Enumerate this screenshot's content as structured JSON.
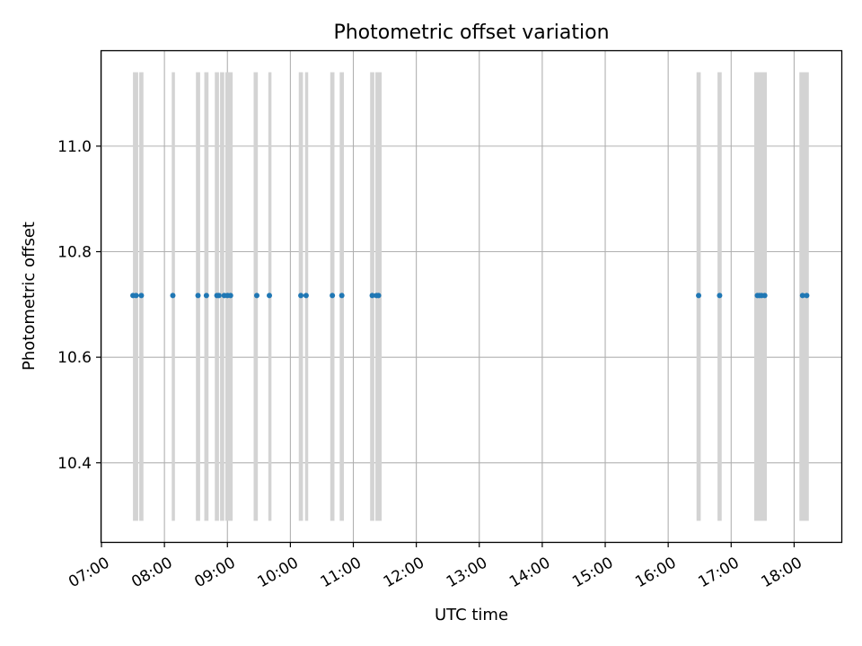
{
  "chart_data": {
    "type": "scatter",
    "title": "Photometric offset variation",
    "xlabel": "UTC time",
    "ylabel": "Photometric offset",
    "x_ticks": [
      "07:00",
      "08:00",
      "09:00",
      "10:00",
      "11:00",
      "12:00",
      "13:00",
      "14:00",
      "15:00",
      "16:00",
      "17:00",
      "18:00"
    ],
    "y_ticks": [
      "10.4",
      "10.6",
      "10.8",
      "11.0"
    ],
    "xlim": [
      "07:00",
      "18:45"
    ],
    "ylim": [
      10.25,
      11.18
    ],
    "grid": true,
    "series": [
      {
        "values_y": 10.717,
        "x": [
          "07:30",
          "07:33",
          "07:38",
          "08:08",
          "08:32",
          "08:40",
          "08:50",
          "08:52",
          "08:57",
          "09:00",
          "09:03",
          "09:28",
          "09:40",
          "10:10",
          "10:15",
          "10:40",
          "10:49",
          "11:18",
          "11:22",
          "11:24",
          "16:29",
          "16:49",
          "17:25",
          "17:27",
          "17:29",
          "17:32",
          "18:08",
          "18:12"
        ],
        "y": [
          10.717,
          10.717,
          10.717,
          10.717,
          10.717,
          10.717,
          10.717,
          10.717,
          10.717,
          10.717,
          10.717,
          10.717,
          10.717,
          10.717,
          10.717,
          10.717,
          10.717,
          10.717,
          10.717,
          10.717,
          10.717,
          10.717,
          10.717,
          10.717,
          10.717,
          10.717,
          10.717,
          10.717
        ],
        "color": "#1f77b4"
      }
    ],
    "shaded_intervals": {
      "color": "#d3d3d3",
      "y_range": [
        10.29,
        11.14
      ],
      "x_ranges": [
        [
          "07:30",
          "07:35"
        ],
        [
          "07:36",
          "07:40"
        ],
        [
          "08:07",
          "08:10"
        ],
        [
          "08:30",
          "08:34"
        ],
        [
          "08:38",
          "08:42"
        ],
        [
          "08:48",
          "08:52"
        ],
        [
          "08:53",
          "08:57"
        ],
        [
          "08:58",
          "09:05"
        ],
        [
          "09:25",
          "09:29"
        ],
        [
          "09:39",
          "09:42"
        ],
        [
          "10:08",
          "10:12"
        ],
        [
          "10:14",
          "10:17"
        ],
        [
          "10:38",
          "10:42"
        ],
        [
          "10:47",
          "10:51"
        ],
        [
          "11:16",
          "11:20"
        ],
        [
          "11:21",
          "11:27"
        ],
        [
          "16:27",
          "16:31"
        ],
        [
          "16:47",
          "16:51"
        ],
        [
          "17:22",
          "17:34"
        ],
        [
          "18:05",
          "18:14"
        ]
      ]
    }
  }
}
